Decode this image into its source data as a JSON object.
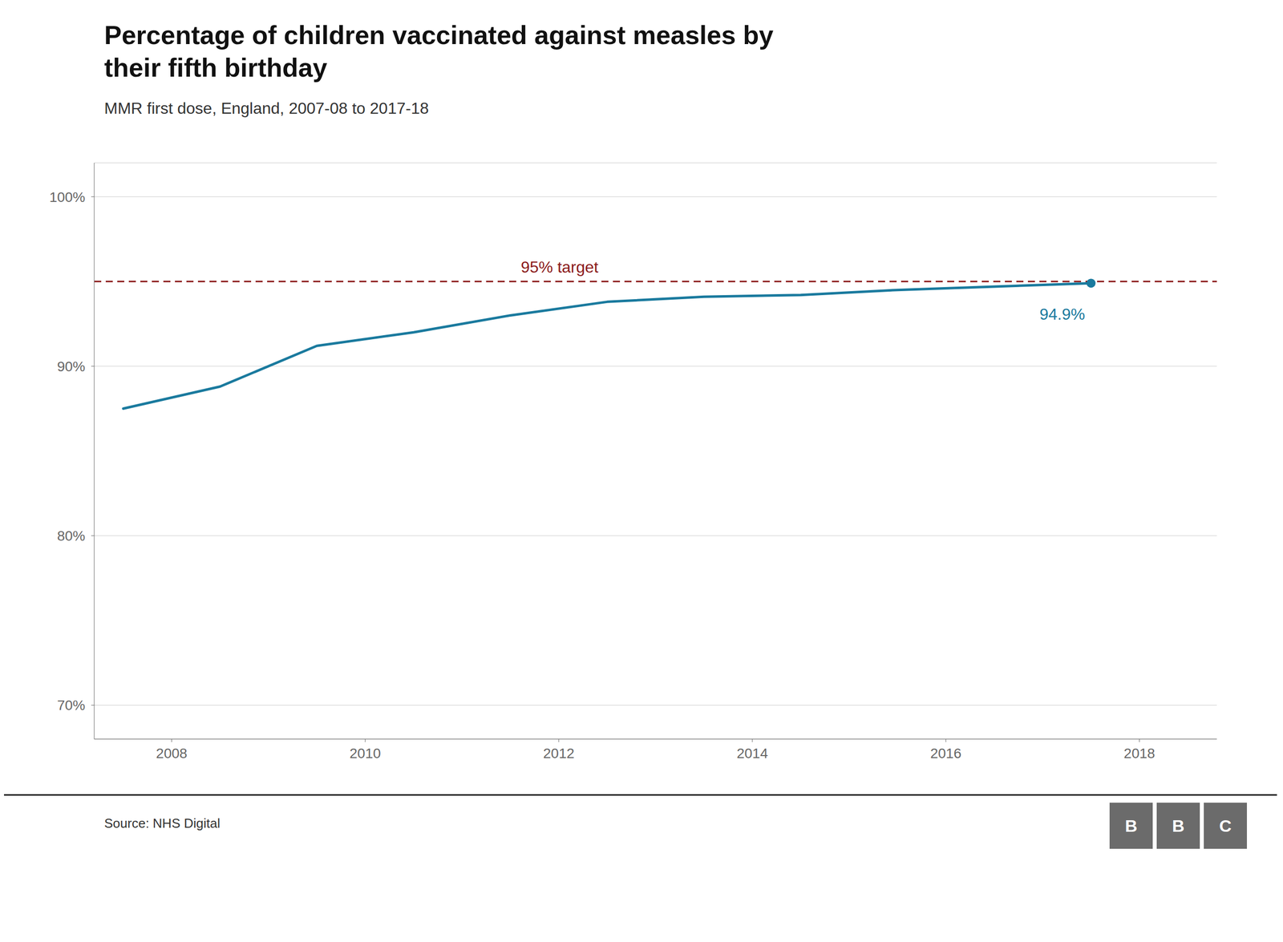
{
  "chart_data": {
    "type": "line",
    "title": "Percentage of children vaccinated against measles by their fifth birthday",
    "subtitle": "MMR first dose, England, 2007-08 to 2017-18",
    "source": "Source: NHS Digital",
    "logo": {
      "text": "BBC",
      "color": "#6b6b6b"
    },
    "x": [
      2007.5,
      2008.5,
      2009.5,
      2010.5,
      2011.5,
      2012.5,
      2013.5,
      2014.5,
      2015.5,
      2016.5,
      2017.5
    ],
    "values": [
      87.5,
      88.8,
      91.2,
      92.0,
      93.0,
      93.8,
      94.1,
      94.2,
      94.5,
      94.7,
      94.9
    ],
    "color": "#1a7a9e",
    "xlim": [
      2007.2,
      2018.8
    ],
    "xticks": [
      2008,
      2010,
      2012,
      2014,
      2016,
      2018
    ],
    "ylim": [
      68,
      102
    ],
    "yticks": [
      {
        "value": 70,
        "label": "70%"
      },
      {
        "value": 80,
        "label": "80%"
      },
      {
        "value": 90,
        "label": "90%"
      },
      {
        "value": 100,
        "label": "100%"
      }
    ],
    "grid": true,
    "target": {
      "value": 95.0,
      "label": "95% target",
      "color": "#8b1a1a"
    },
    "annotations": [
      {
        "x": 2017.5,
        "y": 94.9,
        "text": "94.9%"
      }
    ]
  }
}
